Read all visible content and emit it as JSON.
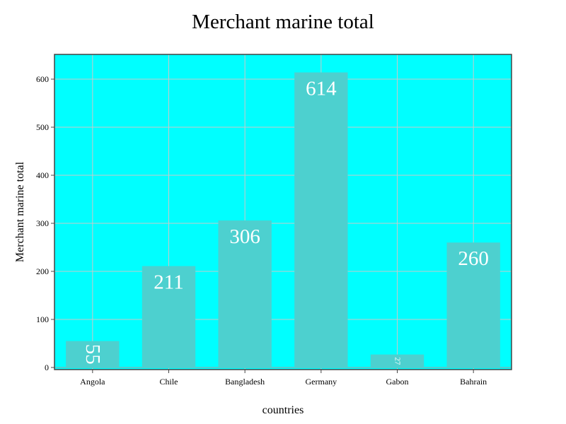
{
  "chart_data": {
    "type": "bar",
    "title": "Merchant marine total",
    "xlabel": "countries",
    "ylabel": "Merchant marine total",
    "categories": [
      "Angola",
      "Chile",
      "Bangladesh",
      "Germany",
      "Gabon",
      "Bahrain"
    ],
    "values": [
      55,
      211,
      306,
      614,
      27,
      260
    ],
    "ylim": [
      0,
      650
    ],
    "yticks": [
      0,
      100,
      200,
      300,
      400,
      500,
      600
    ],
    "grid": true,
    "legend": "none",
    "colors": {
      "plot_background": "#00ffff",
      "bar": "#4dd0cf",
      "grid": "#c9c9c9",
      "axis": "#444444",
      "bar_label": "#ffffff"
    }
  }
}
